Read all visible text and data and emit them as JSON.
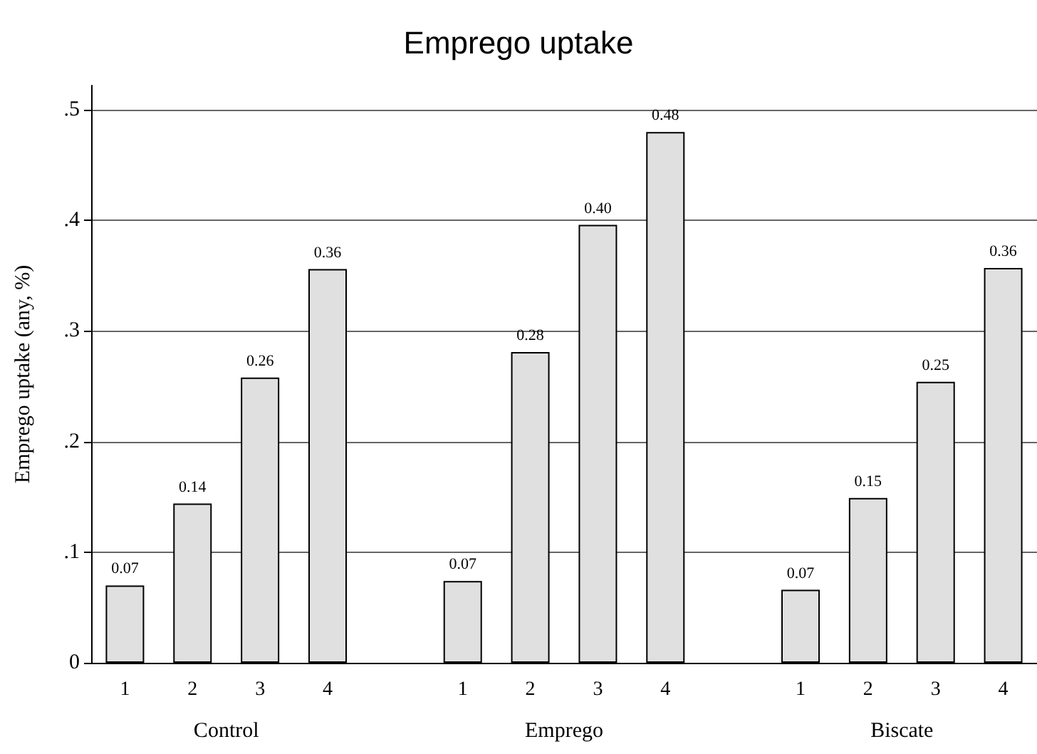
{
  "chart_data": {
    "type": "bar",
    "title": "Emprego uptake",
    "ylabel": "Emprego uptake (any, %)",
    "categories": [
      "1",
      "2",
      "3",
      "4",
      null,
      "1",
      "2",
      "3",
      "4",
      null,
      "1",
      "2",
      "3",
      "4"
    ],
    "values": [
      0.07,
      0.144,
      0.258,
      0.356,
      null,
      0.074,
      0.281,
      0.396,
      0.48,
      null,
      0.066,
      0.149,
      0.254,
      0.357
    ],
    "value_labels": [
      "0.07",
      "0.14",
      "0.26",
      "0.36",
      null,
      "0.07",
      "0.28",
      "0.40",
      "0.48",
      null,
      "0.07",
      "0.15",
      "0.25",
      "0.36"
    ],
    "color": "#e0e0e0",
    "ylim": [
      0,
      0.522
    ],
    "yticks": [
      0,
      {
        "value": 0.1,
        "label": ".1"
      },
      {
        "value": 0.2,
        "label": ".2"
      },
      {
        "value": 0.3,
        "label": ".3"
      },
      {
        "value": 0.4,
        "label": ".4"
      },
      {
        "value": 0.5,
        "label": ".5"
      }
    ],
    "grid": "y",
    "annotations": [
      "Control",
      "Emprego",
      "Biscate"
    ]
  }
}
